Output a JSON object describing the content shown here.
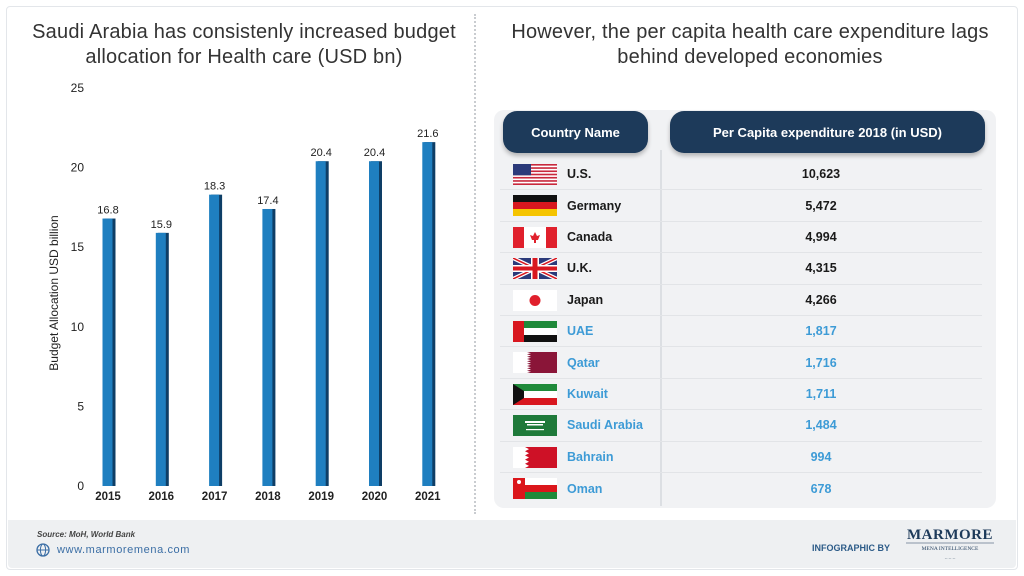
{
  "left_title": "Saudi Arabia has consistenly increased budget allocation for Health care (USD bn)",
  "right_title": "However, the per capita health care expenditure lags behind developed economies",
  "chart_data": {
    "type": "bar",
    "title": "Saudi Arabia has consistenly increased budget allocation for Health care (USD bn)",
    "categories": [
      "2015",
      "2016",
      "2017",
      "2018",
      "2019",
      "2020",
      "2021"
    ],
    "values": [
      16.8,
      15.9,
      18.3,
      17.4,
      20.4,
      20.4,
      21.6
    ],
    "value_labels": [
      "16.8",
      "15.9",
      "18.3",
      "17.4",
      "20.4",
      "20.4",
      "21.6"
    ],
    "ylabel": "Budget Allocation USD billion",
    "xlabel": "",
    "ylim": [
      0,
      25
    ],
    "yticks": [
      "0",
      "5",
      "10",
      "15",
      "20",
      "25"
    ],
    "grid": false,
    "bar_color": "#1f7fc0",
    "bar_shadow_color": "#0e3e66"
  },
  "table": {
    "header_country": "Country Name",
    "header_value": "Per Capita expenditure 2018 (in USD)",
    "rows": [
      {
        "country": "U.S.",
        "value": "10,623",
        "flag": "us-flag",
        "group": "developed"
      },
      {
        "country": "Germany",
        "value": "5,472",
        "flag": "germany-flag",
        "group": "developed"
      },
      {
        "country": "Canada",
        "value": "4,994",
        "flag": "canada-flag",
        "group": "developed"
      },
      {
        "country": "U.K.",
        "value": "4,315",
        "flag": "uk-flag",
        "group": "developed"
      },
      {
        "country": "Japan",
        "value": "4,266",
        "flag": "japan-flag",
        "group": "developed"
      },
      {
        "country": "UAE",
        "value": "1,817",
        "flag": "uae-flag",
        "group": "gcc"
      },
      {
        "country": "Qatar",
        "value": "1,716",
        "flag": "qatar-flag",
        "group": "gcc"
      },
      {
        "country": "Kuwait",
        "value": "1,711",
        "flag": "kuwait-flag",
        "group": "gcc"
      },
      {
        "country": "Saudi Arabia",
        "value": "1,484",
        "flag": "saudi-arabia-flag",
        "group": "gcc"
      },
      {
        "country": "Bahrain",
        "value": "994",
        "flag": "bahrain-flag",
        "group": "gcc"
      },
      {
        "country": "Oman",
        "value": "678",
        "flag": "oman-flag",
        "group": "gcc"
      }
    ],
    "colors": {
      "developed": "#1a1a1a",
      "gcc": "#3d9bd6",
      "header_bg": "#1d3a5a"
    }
  },
  "footer": {
    "source": "Source: MoH, World Bank",
    "website": "www.marmoremena.com",
    "infographic_by": "INFOGRAPHIC BY",
    "logo_text": "MARMORE",
    "logo_subtext": "MENA INTELLIGENCE",
    "globe_icon": "globe-icon"
  }
}
